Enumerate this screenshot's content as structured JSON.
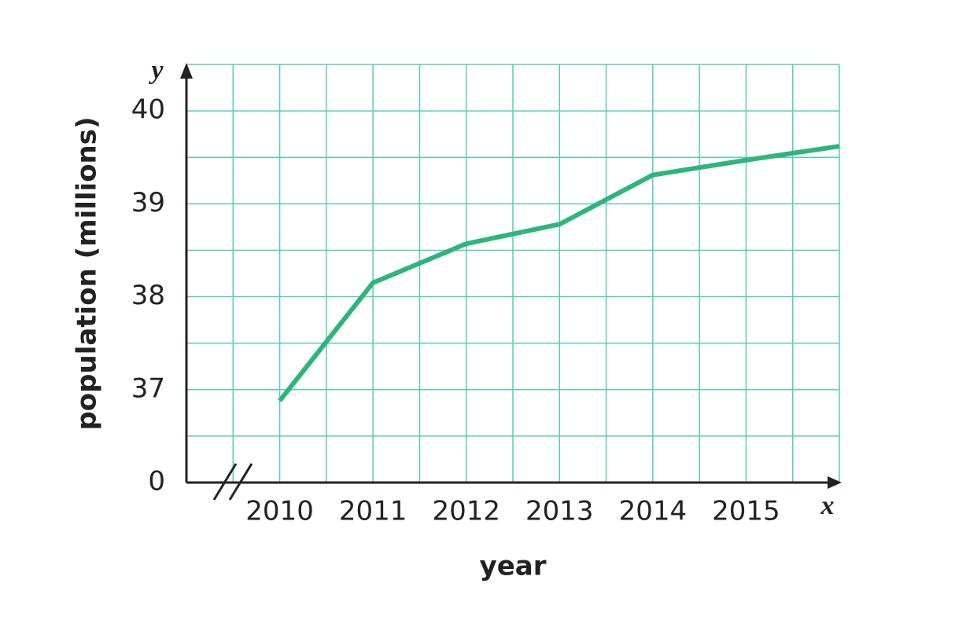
{
  "chart_data": {
    "type": "line",
    "y_axis_label": "population (millions)",
    "x_axis_label": "year",
    "y_axis_symbol": "y",
    "x_axis_symbol": "x",
    "origin_label": "0",
    "x": [
      2010,
      2011,
      2012,
      2013,
      2014,
      2015,
      2016
    ],
    "series": [
      {
        "name": "population",
        "color": "#2db67a",
        "values": [
          36.88,
          38.15,
          38.57,
          38.78,
          39.31,
          39.47,
          39.62
        ]
      }
    ],
    "xlim": [
      2009,
      2016
    ],
    "ylim": [
      36,
      40.5
    ],
    "xticks": [
      2010,
      2011,
      2012,
      2013,
      2014,
      2015
    ],
    "yticks": [
      37,
      38,
      39,
      40
    ],
    "x_minor_grid": [
      2009.5,
      2010.5,
      2011.5,
      2012.5,
      2013.5,
      2014.5,
      2015.5,
      2016
    ],
    "y_minor_grid": [
      36.5,
      37.5,
      38.5,
      39.5,
      40.5
    ],
    "grid": true,
    "grid_color": "#5cc8bf"
  }
}
